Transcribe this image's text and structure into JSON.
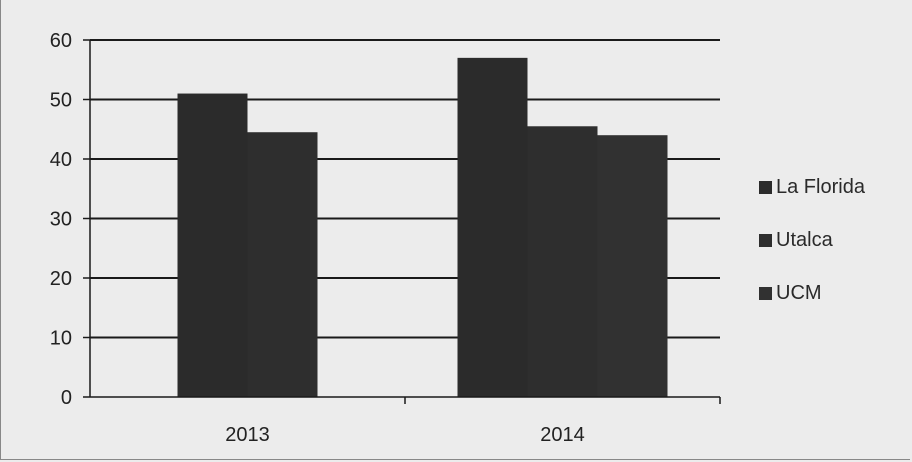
{
  "colors": {
    "series": [
      "#2b2b2b",
      "#2e2e2e",
      "#313131"
    ],
    "grid": "#1a1a1a",
    "background": "#ececec",
    "text": "#222222"
  },
  "chart_data": {
    "type": "bar",
    "categories": [
      "2013",
      "2014"
    ],
    "series": [
      {
        "name": "La Florida",
        "values": [
          51,
          57
        ]
      },
      {
        "name": "Utalca",
        "values": [
          44.5,
          45.5
        ]
      },
      {
        "name": "UCM",
        "values": [
          null,
          44
        ]
      }
    ],
    "ylim": [
      0,
      60
    ],
    "yticks": [
      0,
      10,
      20,
      30,
      40,
      50,
      60
    ],
    "ytick_labels": [
      "0",
      "10",
      "20",
      "30",
      "40",
      "50",
      "60"
    ],
    "grid": true,
    "legend_position": "right"
  }
}
